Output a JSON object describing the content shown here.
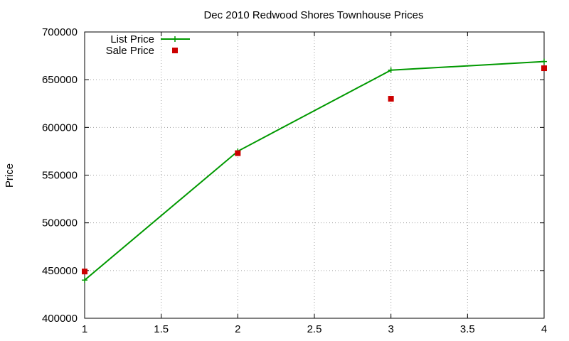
{
  "chart_data": {
    "type": "line",
    "title": "Dec 2010 Redwood Shores Townhouse Prices",
    "xlabel": "",
    "ylabel": "Price",
    "xlim": [
      1,
      4
    ],
    "ylim": [
      400000,
      700000
    ],
    "x_ticks": [
      1,
      1.5,
      2,
      2.5,
      3,
      3.5,
      4
    ],
    "x_tick_labels": [
      "1",
      "1.5",
      "2",
      "2.5",
      "3",
      "3.5",
      "4"
    ],
    "y_ticks": [
      400000,
      450000,
      500000,
      550000,
      600000,
      650000,
      700000
    ],
    "y_tick_labels": [
      "400000",
      "450000",
      "500000",
      "550000",
      "600000",
      "650000",
      "700000"
    ],
    "grid": true,
    "legend_position": "top-left",
    "series": [
      {
        "name": "List Price",
        "style": "line-points",
        "marker": "plus",
        "color": "#009900",
        "x": [
          1,
          2,
          3,
          4
        ],
        "y": [
          440000,
          575000,
          660000,
          669000
        ]
      },
      {
        "name": "Sale Price",
        "style": "points",
        "marker": "square",
        "color": "#cc0000",
        "x": [
          1,
          2,
          3,
          4
        ],
        "y": [
          449000,
          573000,
          630000,
          662000
        ]
      }
    ]
  }
}
